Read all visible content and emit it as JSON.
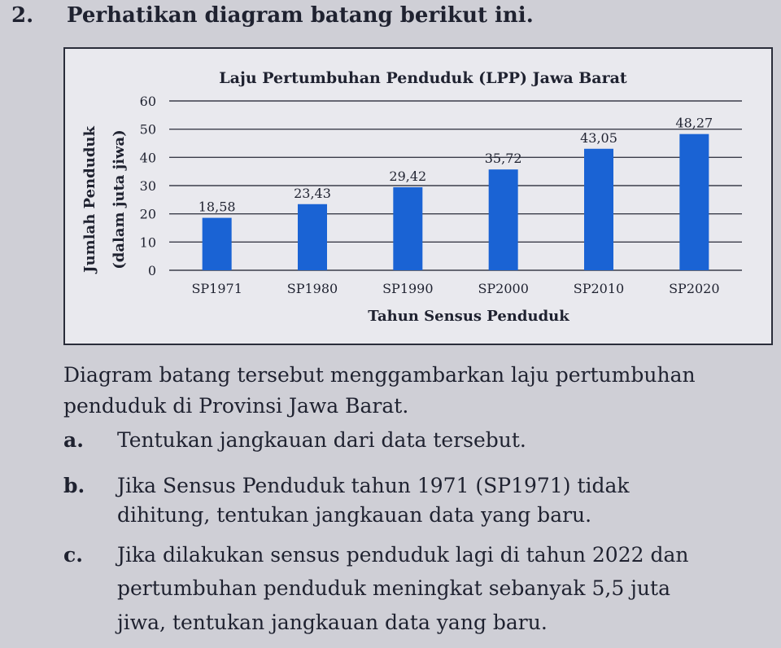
{
  "question": {
    "number": "2.",
    "title": "Perhatikan diagram batang berikut ini."
  },
  "chart_data": {
    "type": "bar",
    "title": "Laju Pertumbuhan Penduduk (LPP) Jawa Barat",
    "xlabel": "Tahun Sensus Penduduk",
    "ylabel": "Jumlah Penduduk",
    "ylabel_sub": "(dalam juta jiwa)",
    "categories": [
      "SP1971",
      "SP1980",
      "SP1990",
      "SP2000",
      "SP2010",
      "SP2020"
    ],
    "values": [
      18.58,
      23.43,
      29.42,
      35.72,
      43.05,
      48.27
    ],
    "value_labels": [
      "18,58",
      "23,43",
      "29,42",
      "35,72",
      "43,05",
      "48,27"
    ],
    "yticks": [
      "0",
      "10",
      "20",
      "30",
      "40",
      "50",
      "60"
    ],
    "ylim": [
      0,
      60
    ],
    "grid": true,
    "bar_color": "#1a63d4"
  },
  "description": {
    "line1": "Diagram batang tersebut menggambarkan laju pertumbuhan",
    "line2": "penduduk di Provinsi Jawa Barat."
  },
  "items": {
    "a": {
      "letter": "a.",
      "text": "Tentukan jangkauan dari data tersebut."
    },
    "b": {
      "letter": "b.",
      "line1": "Jika Sensus Penduduk tahun 1971 (SP1971) tidak",
      "line2": "dihitung, tentukan jangkauan data yang baru."
    },
    "c": {
      "letter": "c.",
      "line1": "Jika dilakukan sensus penduduk lagi di tahun 2022 dan",
      "line2": "pertumbuhan penduduk meningkat sebanyak 5,5 juta",
      "line3": "jiwa, tentukan jangkauan data yang baru."
    }
  }
}
